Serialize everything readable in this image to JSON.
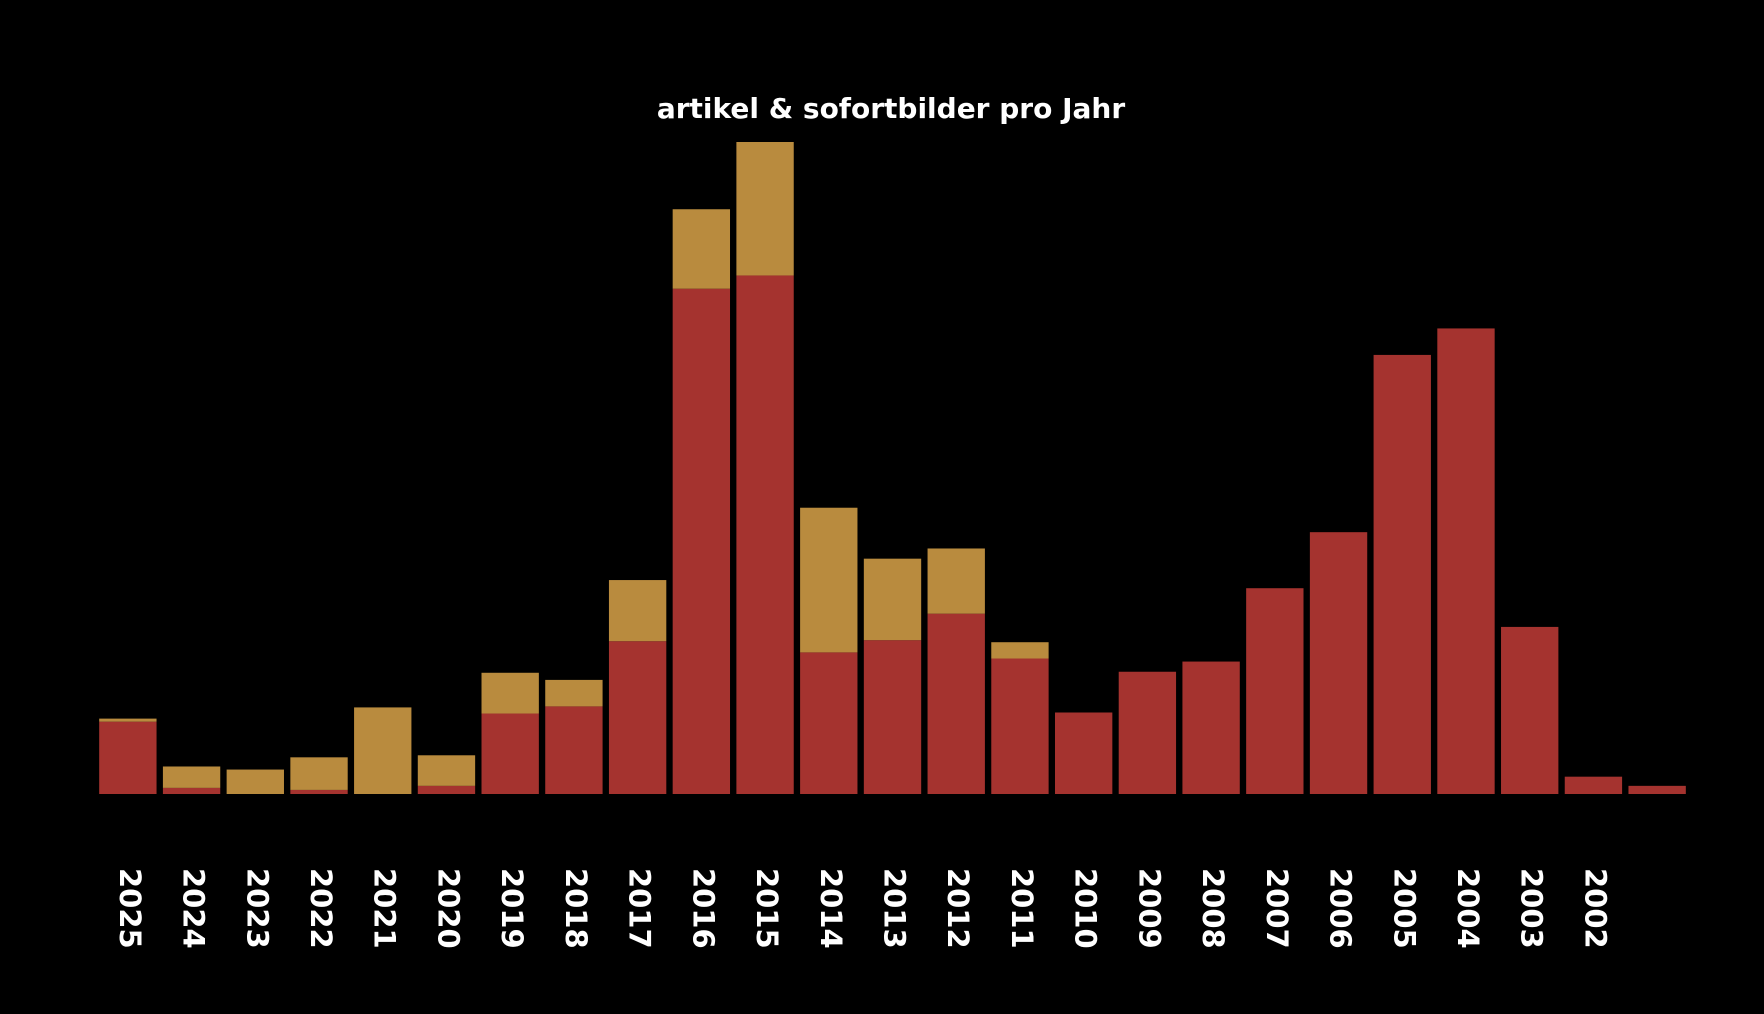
{
  "chart_data": {
    "type": "bar",
    "stacked": true,
    "title": "artikel & sofortbilder pro Jahr",
    "xlabel": "",
    "ylabel": "",
    "ylim": [
      0,
      640
    ],
    "grid": false,
    "legend": "none",
    "categories": [
      "2025",
      "2024",
      "2023",
      "2022",
      "2021",
      "2020",
      "2019",
      "2018",
      "2017",
      "2016",
      "2015",
      "2014",
      "2013",
      "2012",
      "2011",
      "2010",
      "2009",
      "2008",
      "2007",
      "2006",
      "2005",
      "2004",
      "2003",
      "2002",
      ""
    ],
    "tick_labels": [
      "2025",
      "2024",
      "2023",
      "2022",
      "2021",
      "2020",
      "2019",
      "2018",
      "2017",
      "2016",
      "2015",
      "2014",
      "2013",
      "2012",
      "2011",
      "2010",
      "2009",
      "2008",
      "2007",
      "2006",
      "2005",
      "2004",
      "2003",
      "2002"
    ],
    "series": [
      {
        "color": "#a5332f",
        "values": [
          71,
          6,
          0,
          4,
          0,
          8,
          79,
          86,
          150,
          496,
          509,
          139,
          151,
          177,
          133,
          80,
          120,
          130,
          202,
          257,
          431,
          457,
          164,
          17,
          8
        ]
      },
      {
        "color": "#b98b3e",
        "values": [
          3,
          21,
          24,
          32,
          85,
          30,
          40,
          26,
          60,
          78,
          131,
          142,
          80,
          64,
          16,
          0,
          0,
          0,
          0,
          0,
          0,
          0,
          0,
          0,
          0
        ]
      }
    ]
  }
}
